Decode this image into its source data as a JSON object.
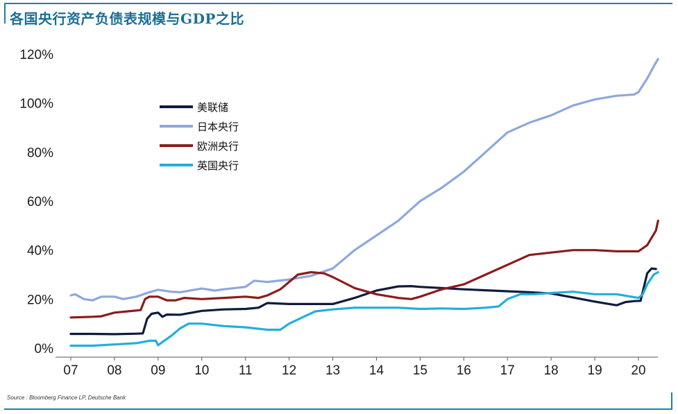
{
  "title": "各国央行资产负债表规模与GDP之比",
  "source": "Source : Bloomberg Finance LP, Deutsche Bank",
  "chart_data": {
    "type": "line",
    "title": "各国央行资产负债表规模与GDP之比",
    "xlabel": "",
    "ylabel": "",
    "xlim": [
      2007,
      2020.5
    ],
    "ylim": [
      0,
      120
    ],
    "x_ticks": [
      "07",
      "08",
      "09",
      "10",
      "11",
      "12",
      "13",
      "14",
      "15",
      "16",
      "17",
      "18",
      "19",
      "20"
    ],
    "y_ticks": [
      "0%",
      "20%",
      "40%",
      "60%",
      "80%",
      "100%",
      "120%"
    ],
    "grid": false,
    "legend_position": "upper-left",
    "series": [
      {
        "name": "美联储",
        "color": "#0f1b3d",
        "points": [
          [
            2007.0,
            5.8
          ],
          [
            2007.5,
            5.8
          ],
          [
            2008.0,
            5.7
          ],
          [
            2008.5,
            5.9
          ],
          [
            2008.65,
            6.0
          ],
          [
            2008.75,
            12.0
          ],
          [
            2008.85,
            14.0
          ],
          [
            2009.0,
            14.5
          ],
          [
            2009.1,
            12.8
          ],
          [
            2009.2,
            13.7
          ],
          [
            2009.5,
            13.6
          ],
          [
            2010.0,
            15.2
          ],
          [
            2010.5,
            15.8
          ],
          [
            2011.0,
            16.0
          ],
          [
            2011.3,
            16.5
          ],
          [
            2011.5,
            18.4
          ],
          [
            2012.0,
            18.0
          ],
          [
            2012.5,
            18.0
          ],
          [
            2013.0,
            18.0
          ],
          [
            2013.5,
            20.5
          ],
          [
            2014.0,
            23.5
          ],
          [
            2014.5,
            25.2
          ],
          [
            2014.8,
            25.3
          ],
          [
            2015.0,
            25.0
          ],
          [
            2015.5,
            24.5
          ],
          [
            2016.0,
            24.0
          ],
          [
            2016.5,
            23.6
          ],
          [
            2017.0,
            23.2
          ],
          [
            2017.5,
            22.8
          ],
          [
            2018.0,
            22.3
          ],
          [
            2018.5,
            20.7
          ],
          [
            2019.0,
            19.0
          ],
          [
            2019.5,
            17.5
          ],
          [
            2019.7,
            18.8
          ],
          [
            2019.9,
            19.2
          ],
          [
            2020.05,
            19.3
          ],
          [
            2020.2,
            30.5
          ],
          [
            2020.3,
            32.5
          ],
          [
            2020.4,
            32.3
          ]
        ]
      },
      {
        "name": "日本央行",
        "color": "#8ea7dd",
        "points": [
          [
            2007.0,
            21.5
          ],
          [
            2007.1,
            22.0
          ],
          [
            2007.3,
            20.0
          ],
          [
            2007.5,
            19.5
          ],
          [
            2007.7,
            21.0
          ],
          [
            2008.0,
            21.0
          ],
          [
            2008.2,
            20.0
          ],
          [
            2008.5,
            21.0
          ],
          [
            2008.8,
            22.8
          ],
          [
            2009.0,
            23.8
          ],
          [
            2009.3,
            23.0
          ],
          [
            2009.5,
            22.8
          ],
          [
            2010.0,
            24.3
          ],
          [
            2010.3,
            23.5
          ],
          [
            2010.5,
            24.0
          ],
          [
            2011.0,
            25.0
          ],
          [
            2011.2,
            27.5
          ],
          [
            2011.5,
            27.0
          ],
          [
            2012.0,
            28.0
          ],
          [
            2012.5,
            29.5
          ],
          [
            2013.0,
            32.5
          ],
          [
            2013.3,
            37.0
          ],
          [
            2013.5,
            40.0
          ],
          [
            2014.0,
            46.0
          ],
          [
            2014.5,
            52.0
          ],
          [
            2015.0,
            60.0
          ],
          [
            2015.5,
            65.5
          ],
          [
            2016.0,
            72.0
          ],
          [
            2016.5,
            80.0
          ],
          [
            2017.0,
            88.0
          ],
          [
            2017.5,
            92.0
          ],
          [
            2018.0,
            95.0
          ],
          [
            2018.5,
            99.0
          ],
          [
            2019.0,
            101.5
          ],
          [
            2019.5,
            103.0
          ],
          [
            2019.9,
            103.5
          ],
          [
            2020.0,
            104.5
          ],
          [
            2020.2,
            110.0
          ],
          [
            2020.35,
            115.0
          ],
          [
            2020.45,
            118.0
          ]
        ]
      },
      {
        "name": "欧洲央行",
        "color": "#8b1c1c",
        "points": [
          [
            2007.0,
            12.5
          ],
          [
            2007.5,
            12.8
          ],
          [
            2007.7,
            13.0
          ],
          [
            2008.0,
            14.5
          ],
          [
            2008.3,
            15.0
          ],
          [
            2008.6,
            15.5
          ],
          [
            2008.7,
            20.0
          ],
          [
            2008.8,
            21.0
          ],
          [
            2009.0,
            21.0
          ],
          [
            2009.2,
            19.5
          ],
          [
            2009.4,
            19.5
          ],
          [
            2009.6,
            20.5
          ],
          [
            2010.0,
            20.0
          ],
          [
            2010.5,
            20.5
          ],
          [
            2011.0,
            21.0
          ],
          [
            2011.3,
            20.5
          ],
          [
            2011.5,
            21.5
          ],
          [
            2011.8,
            24.0
          ],
          [
            2012.0,
            27.0
          ],
          [
            2012.2,
            30.0
          ],
          [
            2012.5,
            31.0
          ],
          [
            2012.8,
            30.5
          ],
          [
            2013.0,
            29.0
          ],
          [
            2013.5,
            24.5
          ],
          [
            2014.0,
            22.0
          ],
          [
            2014.5,
            20.5
          ],
          [
            2014.8,
            20.0
          ],
          [
            2015.0,
            21.0
          ],
          [
            2015.5,
            24.0
          ],
          [
            2016.0,
            26.0
          ],
          [
            2016.5,
            30.0
          ],
          [
            2017.0,
            34.0
          ],
          [
            2017.5,
            38.0
          ],
          [
            2018.0,
            39.0
          ],
          [
            2018.5,
            40.0
          ],
          [
            2019.0,
            40.0
          ],
          [
            2019.5,
            39.5
          ],
          [
            2020.0,
            39.5
          ],
          [
            2020.2,
            42.0
          ],
          [
            2020.4,
            48.0
          ],
          [
            2020.45,
            52.0
          ]
        ]
      },
      {
        "name": "英国央行",
        "color": "#23aedb",
        "points": [
          [
            2007.0,
            1.0
          ],
          [
            2007.5,
            1.0
          ],
          [
            2008.0,
            1.5
          ],
          [
            2008.5,
            2.0
          ],
          [
            2008.8,
            3.0
          ],
          [
            2008.95,
            3.0
          ],
          [
            2009.0,
            1.2
          ],
          [
            2009.1,
            2.5
          ],
          [
            2009.3,
            5.0
          ],
          [
            2009.5,
            8.0
          ],
          [
            2009.7,
            10.0
          ],
          [
            2010.0,
            10.0
          ],
          [
            2010.5,
            9.0
          ],
          [
            2011.0,
            8.5
          ],
          [
            2011.5,
            7.5
          ],
          [
            2011.8,
            7.5
          ],
          [
            2012.0,
            10.0
          ],
          [
            2012.3,
            12.5
          ],
          [
            2012.6,
            15.0
          ],
          [
            2013.0,
            15.8
          ],
          [
            2013.5,
            16.5
          ],
          [
            2014.0,
            16.5
          ],
          [
            2014.5,
            16.5
          ],
          [
            2015.0,
            16.0
          ],
          [
            2015.5,
            16.2
          ],
          [
            2016.0,
            16.0
          ],
          [
            2016.5,
            16.5
          ],
          [
            2016.8,
            17.0
          ],
          [
            2017.0,
            20.0
          ],
          [
            2017.3,
            22.0
          ],
          [
            2017.6,
            22.0
          ],
          [
            2018.0,
            22.5
          ],
          [
            2018.5,
            23.0
          ],
          [
            2019.0,
            22.0
          ],
          [
            2019.5,
            22.0
          ],
          [
            2020.0,
            20.5
          ],
          [
            2020.1,
            22.0
          ],
          [
            2020.2,
            26.0
          ],
          [
            2020.35,
            30.0
          ],
          [
            2020.45,
            31.0
          ]
        ]
      }
    ]
  }
}
